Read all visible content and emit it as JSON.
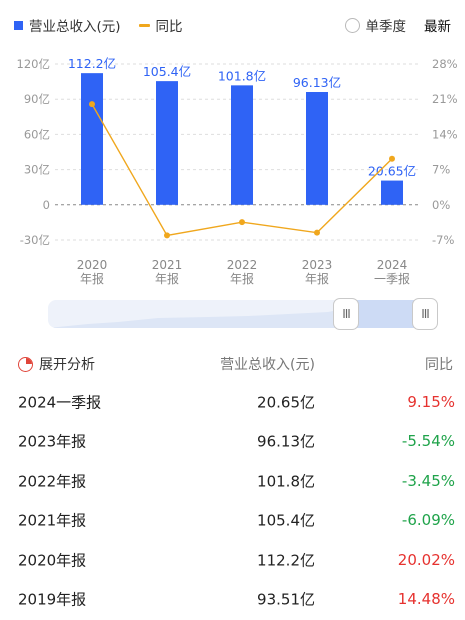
{
  "legend": {
    "revenue_label": "营业总收入(元)",
    "yoy_label": "同比",
    "quarter_label": "单季度",
    "latest_label": "最新"
  },
  "colors": {
    "bar": "#2f63f5",
    "line": "#f0a71d",
    "positive": "#e6322f",
    "negative": "#1fa34a"
  },
  "chart_data": {
    "type": "bar",
    "categories": [
      "2020\n年报",
      "2021\n年报",
      "2022\n年报",
      "2023\n年报",
      "2024\n一季报"
    ],
    "series": [
      {
        "name": "营业总收入(元)",
        "type": "bar",
        "values": [
          112.2,
          105.4,
          101.8,
          96.13,
          20.65
        ],
        "labels": [
          "112.2亿",
          "105.4亿",
          "101.8亿",
          "96.13亿",
          "20.65亿"
        ]
      },
      {
        "name": "同比",
        "type": "line",
        "values": [
          20.02,
          -6.09,
          -3.45,
          -5.54,
          9.15
        ]
      }
    ],
    "y_left": {
      "ticks": [
        "120亿",
        "90亿",
        "60亿",
        "30亿",
        "0",
        "-30亿"
      ],
      "min": -30,
      "max": 120
    },
    "y_right": {
      "ticks": [
        "28%",
        "21%",
        "14%",
        "7%",
        "0%",
        "-7%"
      ],
      "min": -7,
      "max": 28
    },
    "grid": true
  },
  "table": {
    "header": {
      "col1": "展开分析",
      "col2": "营业总收入(元)",
      "col3": "同比"
    },
    "rows": [
      {
        "period": "2024一季报",
        "revenue": "20.65亿",
        "yoy": "9.15%",
        "sign": "positive"
      },
      {
        "period": "2023年报",
        "revenue": "96.13亿",
        "yoy": "-5.54%",
        "sign": "negative"
      },
      {
        "period": "2022年报",
        "revenue": "101.8亿",
        "yoy": "-3.45%",
        "sign": "negative"
      },
      {
        "period": "2021年报",
        "revenue": "105.4亿",
        "yoy": "-6.09%",
        "sign": "negative"
      },
      {
        "period": "2020年报",
        "revenue": "112.2亿",
        "yoy": "20.02%",
        "sign": "positive"
      },
      {
        "period": "2019年报",
        "revenue": "93.51亿",
        "yoy": "14.48%",
        "sign": "positive"
      }
    ]
  },
  "slider": {
    "handle_glyph": "III"
  }
}
